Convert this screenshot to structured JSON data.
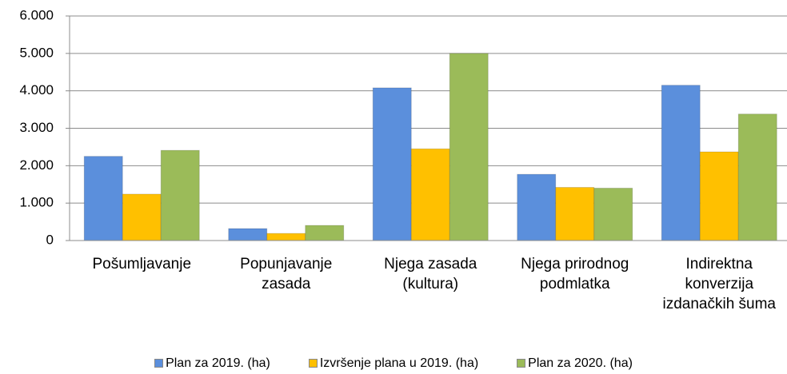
{
  "chart_data": {
    "type": "bar",
    "categories": [
      "Pošumljavanje",
      "Popunjavanje zasada",
      "Njega zasada (kultura)",
      "Njega prirodnog podmlatka",
      "Indirektna konverzija izdanačkih šuma"
    ],
    "series": [
      {
        "name": "Plan za 2019. (ha)",
        "color": "#5b8fdc",
        "values": [
          2250,
          320,
          4080,
          1770,
          4150
        ]
      },
      {
        "name": "Izvršenje plana u 2019. (ha)",
        "color": "#ffc000",
        "values": [
          1240,
          190,
          2450,
          1420,
          2370
        ]
      },
      {
        "name": "Plan za 2020. (ha)",
        "color": "#9bbb59",
        "values": [
          2410,
          405,
          5000,
          1400,
          3380
        ]
      }
    ],
    "ylim": [
      0,
      6000
    ],
    "yticks": [
      0,
      {
        "value": 1000,
        "label": "1.000"
      },
      {
        "value": 2000,
        "label": "2.000"
      },
      {
        "value": 3000,
        "label": "3.000"
      },
      {
        "value": 4000,
        "label": "4.000"
      },
      {
        "value": 5000,
        "label": "5.000"
      },
      {
        "value": 6000,
        "label": "6.000"
      }
    ],
    "grid": true,
    "legend": "bottom"
  }
}
